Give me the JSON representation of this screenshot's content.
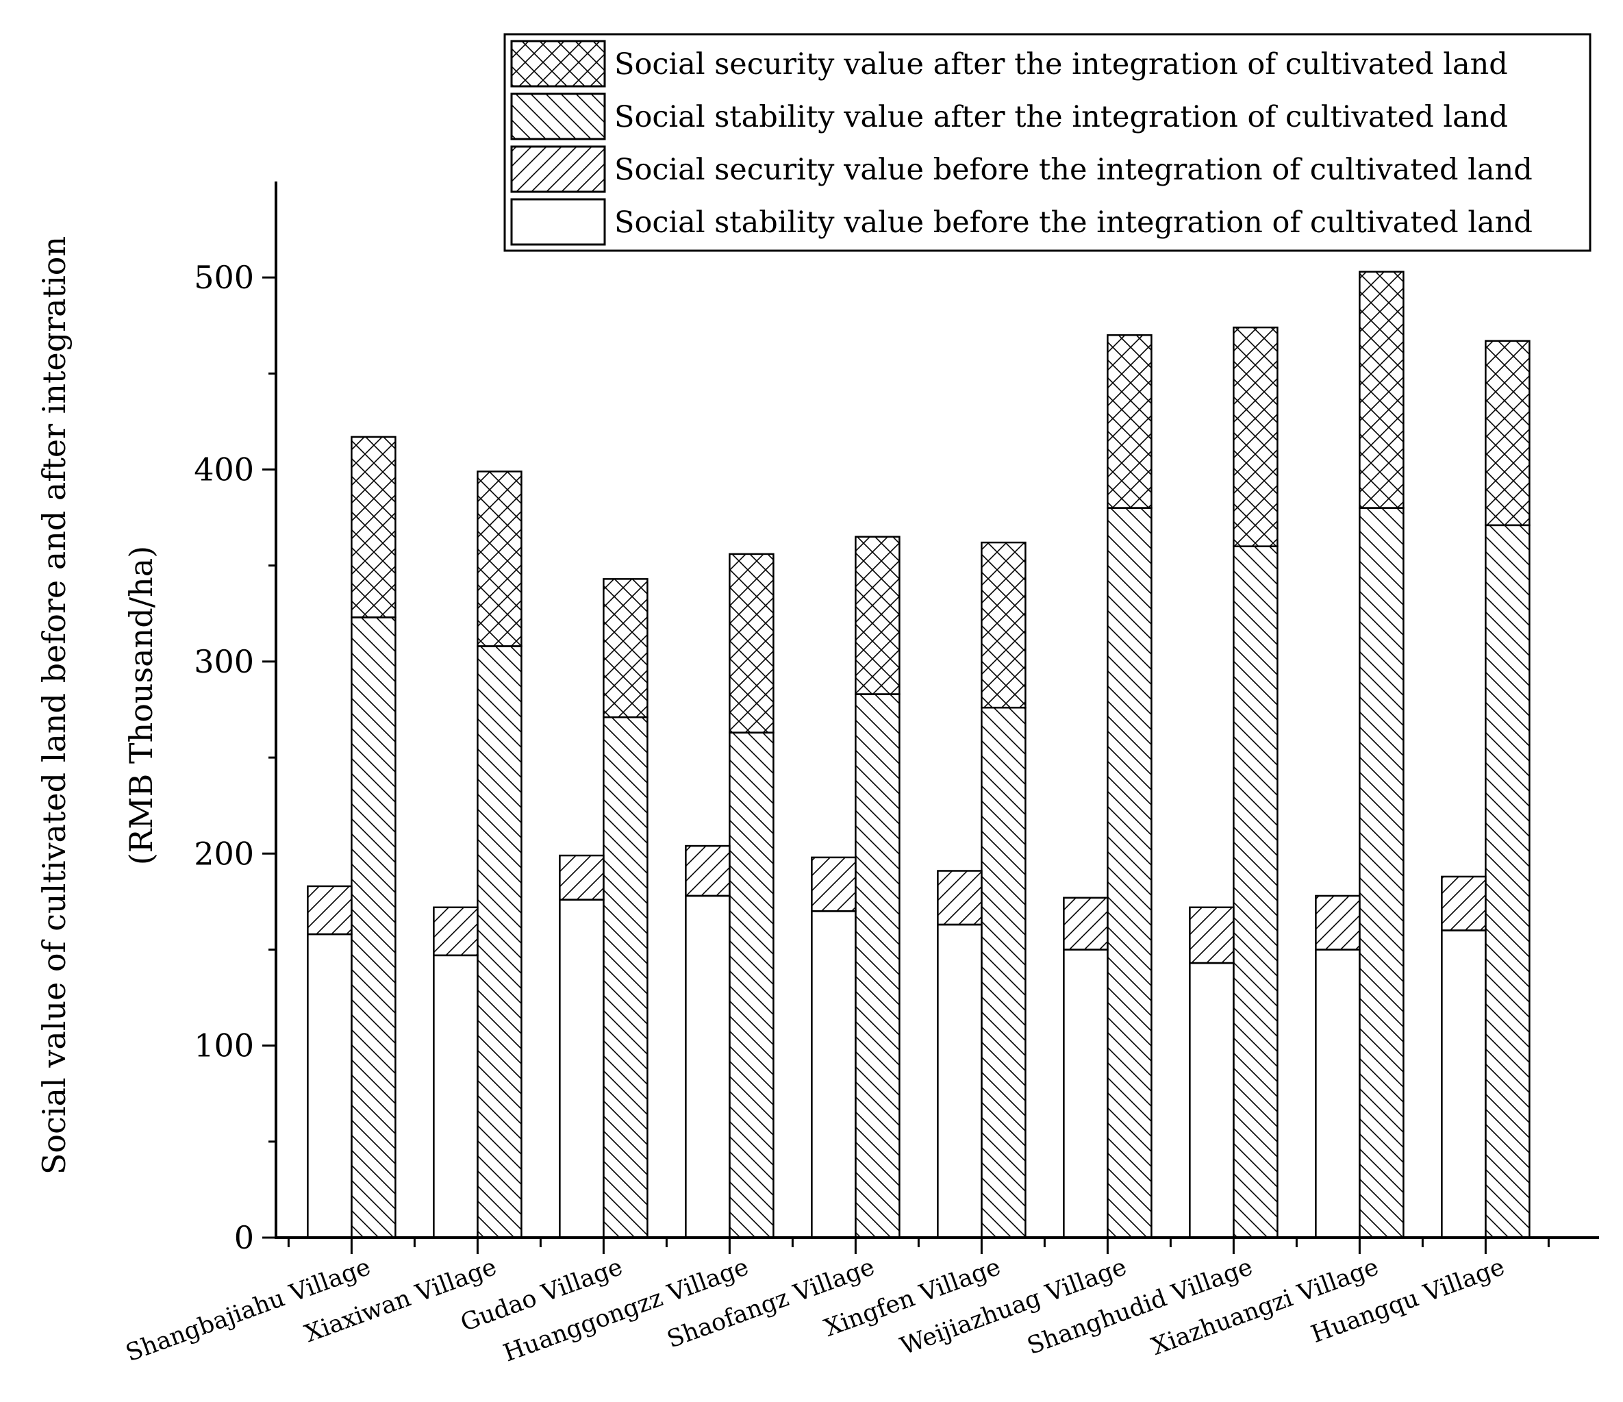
{
  "chart_data": {
    "type": "bar",
    "stacked": true,
    "title": "",
    "ylabel": "Social value of cultivated land before and after integration",
    "ylabel_units": "(RMB  Thousand/ha)",
    "xlabel": "",
    "ylim": [
      0,
      550
    ],
    "yticks": [
      0,
      100,
      200,
      300,
      400,
      500
    ],
    "categories": [
      "Shangbajiahu Village",
      "Xiaxiwan Village",
      "Gudao Village",
      "Huanggongzz Village",
      "Shaofangz Village",
      "Xingfen Village",
      "Weijiazhuag Village",
      "Shanghudid Village",
      "Xiazhuangzi Village",
      "Huangqu Village"
    ],
    "legend_position": "top-right",
    "groups": [
      {
        "name": "before",
        "series": [
          {
            "name": "Social stability value before the integration of cultivated land",
            "pattern": "none",
            "values": [
              158,
              147,
              176,
              178,
              170,
              163,
              150,
              143,
              150,
              160
            ]
          },
          {
            "name": "Social security value before the integration of cultivated land",
            "pattern": "forward-hatch",
            "values": [
              25,
              25,
              23,
              26,
              28,
              28,
              27,
              29,
              28,
              28
            ]
          }
        ]
      },
      {
        "name": "after",
        "series": [
          {
            "name": "Social stability value after the integration of cultivated land",
            "pattern": "back-hatch",
            "values": [
              323,
              308,
              271,
              263,
              283,
              276,
              380,
              360,
              380,
              371
            ]
          },
          {
            "name": "Social security value after the integration of cultivated land",
            "pattern": "cross-hatch",
            "values": [
              94,
              91,
              72,
              93,
              82,
              86,
              90,
              114,
              123,
              96
            ]
          }
        ]
      }
    ],
    "legend": [
      {
        "label": "Social security value after the integration of cultivated land",
        "pattern": "cross-hatch"
      },
      {
        "label": "Social stability value after the integration of cultivated land",
        "pattern": "back-hatch"
      },
      {
        "label": "Social security value before the integration of cultivated land",
        "pattern": "forward-hatch"
      },
      {
        "label": "Social stability value before the integration of cultivated land",
        "pattern": "none"
      }
    ]
  }
}
